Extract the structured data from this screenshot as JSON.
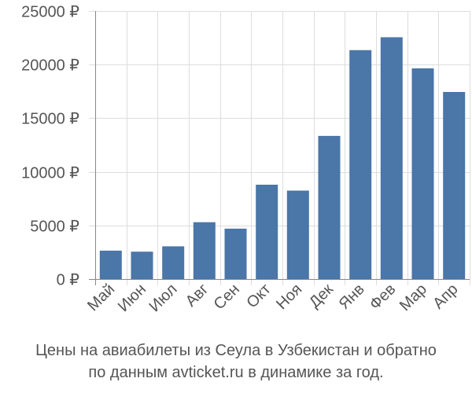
{
  "chart_data": {
    "type": "bar",
    "title": "",
    "xlabel": "",
    "ylabel": "",
    "categories": [
      "Май",
      "Июн",
      "Июл",
      "Авг",
      "Сен",
      "Окт",
      "Ноя",
      "Дек",
      "Янв",
      "Фев",
      "Мар",
      "Апр"
    ],
    "values": [
      2650,
      2550,
      3050,
      5300,
      4700,
      8800,
      8250,
      13350,
      21350,
      22550,
      19650,
      17450
    ],
    "ylim": [
      0,
      25000
    ],
    "yticks": [
      0,
      5000,
      10000,
      15000,
      20000,
      25000
    ],
    "ytick_labels": [
      "0 ₽",
      "5000 ₽",
      "10000 ₽",
      "15000 ₽",
      "20000 ₽",
      "25000 ₽"
    ],
    "grid": true,
    "bar_color": "#4a76a8",
    "grid_color": "#dddddd",
    "axis_color": "#888888",
    "text_color": "#555555"
  },
  "caption": {
    "line1": "Цены на авиабилеты из Сеула в Узбекистан и обратно",
    "line2": "по данным avticket.ru в динамике за год."
  }
}
